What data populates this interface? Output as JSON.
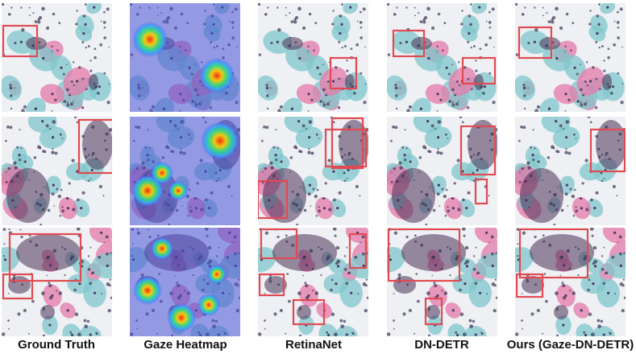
{
  "figure": {
    "columns": [
      {
        "label": "Ground Truth",
        "kind": "cells"
      },
      {
        "label": "Gaze Heatmap",
        "kind": "heatmap"
      },
      {
        "label": "RetinaNet",
        "kind": "cells"
      },
      {
        "label": "DN-DETR",
        "kind": "cells"
      },
      {
        "label": "Ours (Gaze-DN-DETR)",
        "kind": "cells"
      }
    ],
    "box_color": "#e14a52",
    "rows": 3
  }
}
